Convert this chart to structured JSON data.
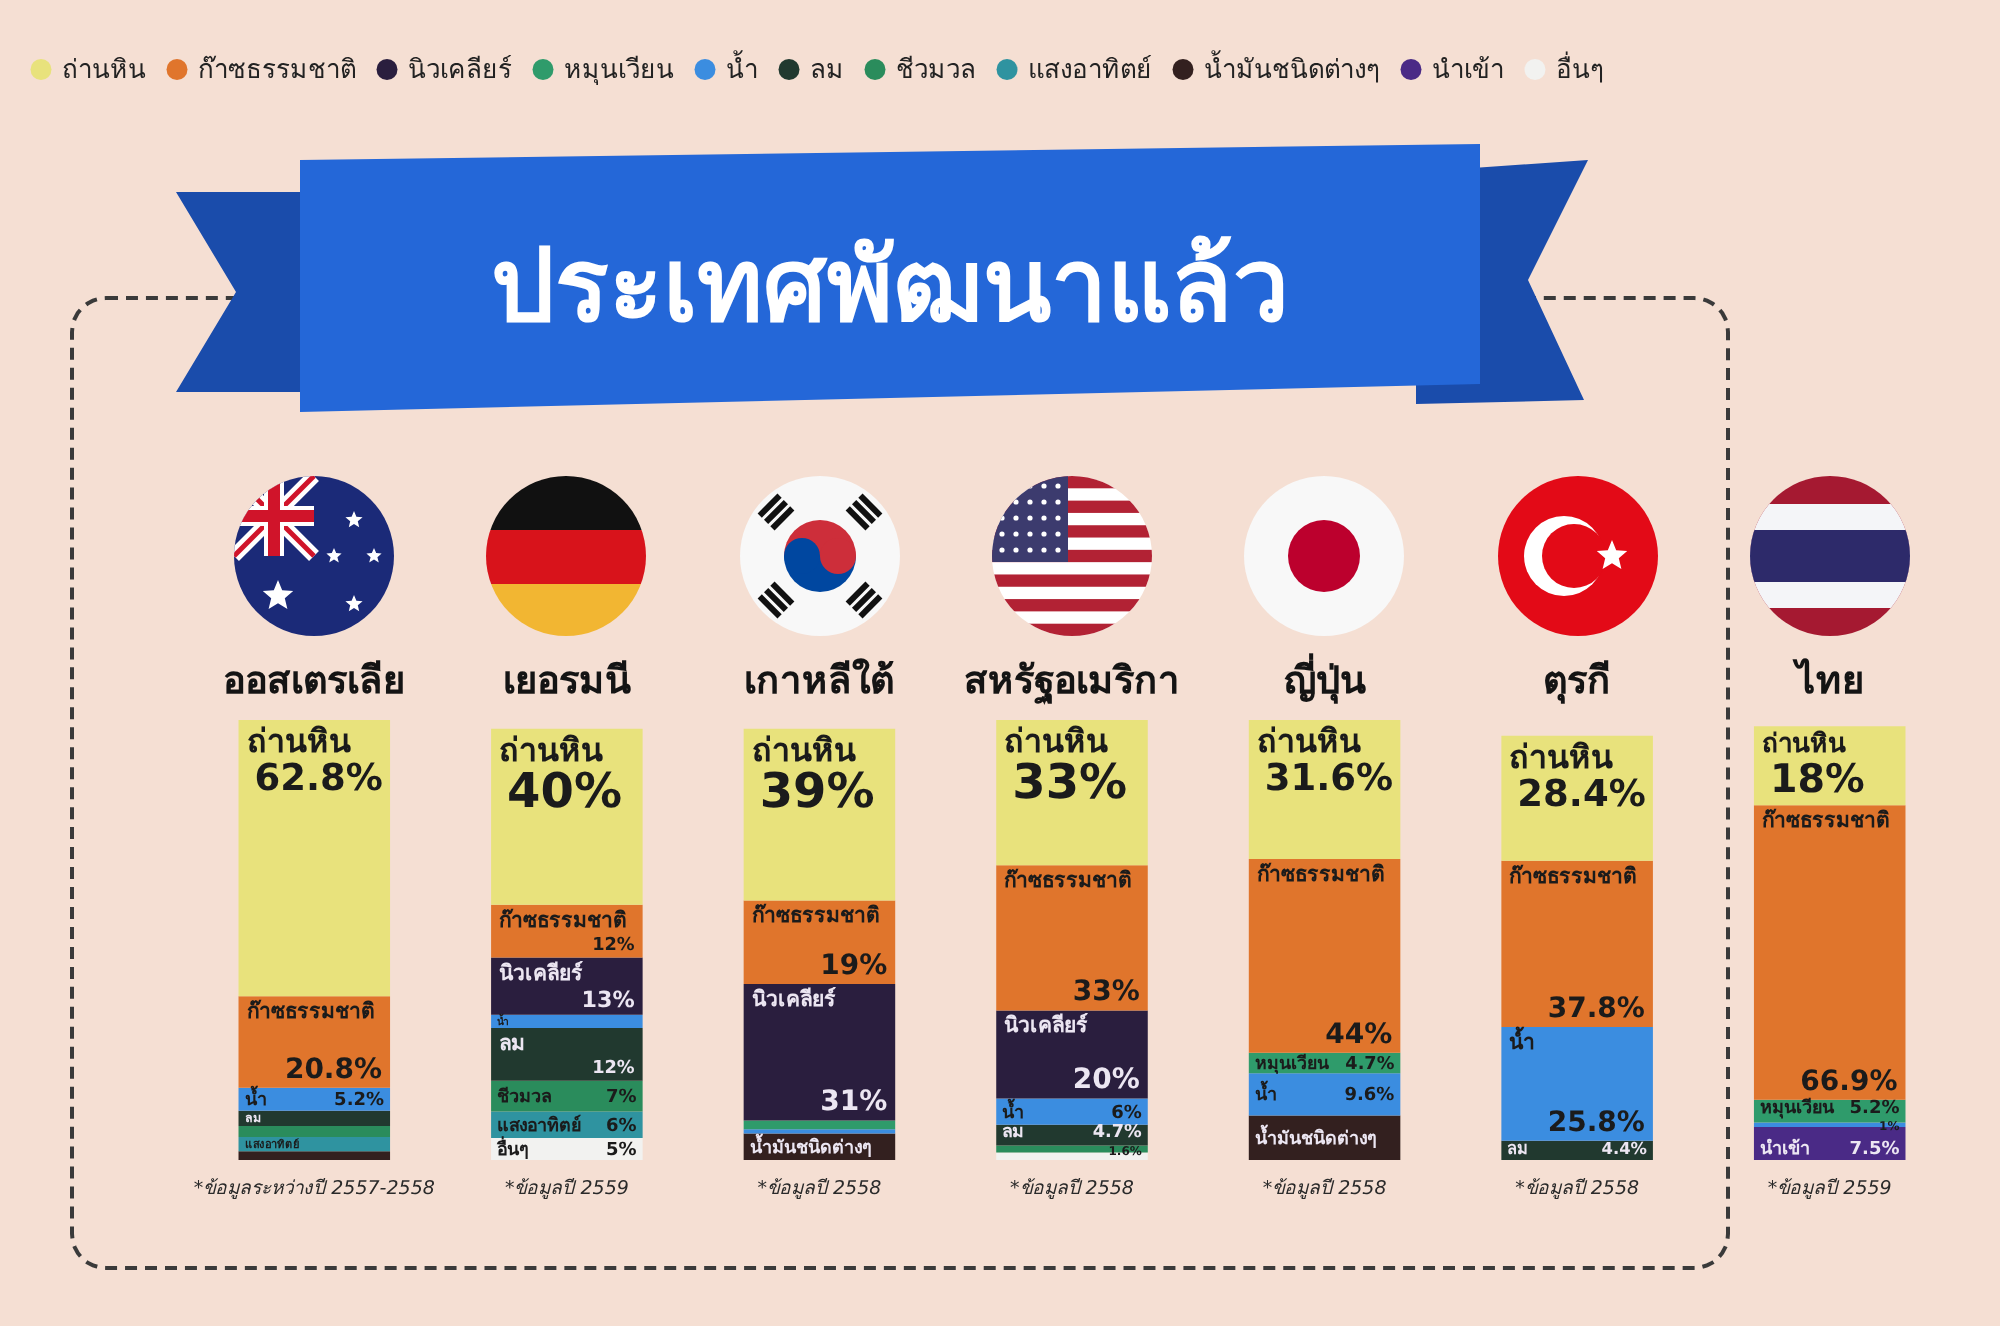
{
  "chart_data": {
    "type": "bar",
    "title": "ประเทศพัฒนาแล้ว",
    "categories": [
      "ออสเตรเลีย",
      "เยอรมนี",
      "เกาหลีใต้",
      "สหรัฐอเมริกา",
      "ญี่ปุ่น",
      "ตุรกี",
      "ไทย"
    ],
    "stacked": true,
    "legend": "top",
    "tick_labels": "x",
    "series": [
      {
        "name": "อื่นๆ",
        "color": "#f2f2f0",
        "values": [
          null,
          5,
          null,
          1.7,
          null,
          null,
          null
        ],
        "value_labels": [
          null,
          "5%",
          null,
          null,
          null,
          null,
          null
        ]
      },
      {
        "name": "นำเข้า",
        "color": "#4a2a86",
        "values": [
          null,
          null,
          null,
          null,
          null,
          null,
          7.5
        ],
        "value_labels": [
          null,
          null,
          null,
          null,
          null,
          null,
          "7.5%"
        ]
      },
      {
        "name": "น้ำมันชนิดต่างๆ",
        "color": "#33201f",
        "values": [
          2,
          null,
          6,
          null,
          10.1,
          null,
          null
        ],
        "value_labels": [
          null,
          null,
          null,
          null,
          null,
          null,
          null
        ]
      },
      {
        "name": "แสงอาทิตย์",
        "color": "#2f93a0",
        "values": [
          3.2,
          6,
          null,
          null,
          null,
          null,
          null
        ],
        "value_labels": [
          null,
          "6%",
          null,
          null,
          null,
          null,
          null
        ]
      },
      {
        "name": "ชีวมวล",
        "color": "#2a8c5c",
        "values": [
          2.5,
          7,
          null,
          1.6,
          null,
          null,
          null
        ],
        "value_labels": [
          null,
          "7%",
          null,
          "1.6%",
          null,
          null,
          null
        ]
      },
      {
        "name": "ลม",
        "color": "#21392f",
        "values": [
          3.5,
          12,
          null,
          4.7,
          null,
          4.4,
          null
        ],
        "value_labels": [
          null,
          "12%",
          null,
          "4.7%",
          null,
          "4.4%",
          null
        ]
      },
      {
        "name": "น้ำ",
        "color": "#3b8de0",
        "values": [
          5.2,
          3,
          1,
          6,
          9.6,
          25.8,
          1
        ],
        "value_labels": [
          "5.2%",
          null,
          null,
          "6%",
          "9.6%",
          "25.8%",
          "1%"
        ]
      },
      {
        "name": "หมุนเวียน",
        "color": "#2f9b6b",
        "values": [
          null,
          null,
          2,
          null,
          4.7,
          null,
          5.2
        ],
        "value_labels": [
          null,
          null,
          null,
          null,
          "4.7%",
          null,
          "5.2%"
        ]
      },
      {
        "name": "นิวเคลียร์",
        "color": "#2a1e3e",
        "values": [
          null,
          13,
          31,
          20,
          null,
          null,
          null
        ],
        "value_labels": [
          null,
          "13%",
          "31%",
          "20%",
          null,
          null,
          null
        ]
      },
      {
        "name": "ก๊าซธรรมชาติ",
        "color": "#e0752c",
        "values": [
          20.8,
          12,
          19,
          33,
          44,
          37.8,
          66.9
        ],
        "value_labels": [
          "20.8%",
          "12%",
          "19%",
          "33%",
          "44%",
          "37.8%",
          "66.9%"
        ]
      },
      {
        "name": "ถ่านหิน",
        "color": "#e8e27c",
        "values": [
          62.8,
          40,
          39,
          33,
          31.6,
          28.4,
          18
        ],
        "value_labels": [
          "62.8%",
          "40%",
          "39%",
          "33%",
          "31.6%",
          "28.4%",
          "18%"
        ]
      }
    ],
    "annotations": [
      "*ข้อมูลระหว่างปี 2557-2558",
      "*ข้อมูลปี 2559",
      "*ข้อมูลปี 2558",
      "*ข้อมูลปี 2558",
      "*ข้อมูลปี 2558",
      "*ข้อมูลปี 2558",
      "*ข้อมูลปี 2559"
    ]
  }
}
